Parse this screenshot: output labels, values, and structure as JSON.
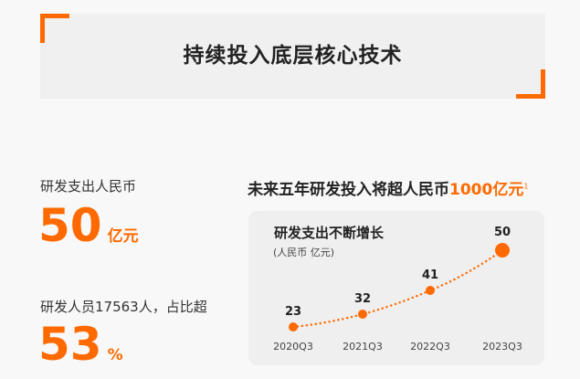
{
  "banner": {
    "title": "持续投入底层核心技术"
  },
  "stats": [
    {
      "label": "研发支出人民币",
      "value": "50",
      "unit": "亿元"
    },
    {
      "label": "研发人员17563人，占比超",
      "value": "53",
      "unit": "%"
    }
  ],
  "headline": {
    "text": "未来五年研发投入将超人民币",
    "highlight": "1000亿元",
    "footnote": "1"
  },
  "colors": {
    "accent": "#ff6a00",
    "card": "#efefef",
    "banner": "#f0f0f0"
  },
  "chart_data": {
    "type": "line",
    "title": "研发支出不断增长",
    "subtitle": "(人民币 亿元)",
    "categories": [
      "2020Q3",
      "2021Q3",
      "2022Q3",
      "2023Q3"
    ],
    "values": [
      23,
      32,
      41,
      50
    ],
    "data_labels": [
      "23",
      "32",
      "41",
      "50"
    ],
    "line_style": "dotted",
    "grid": false
  }
}
